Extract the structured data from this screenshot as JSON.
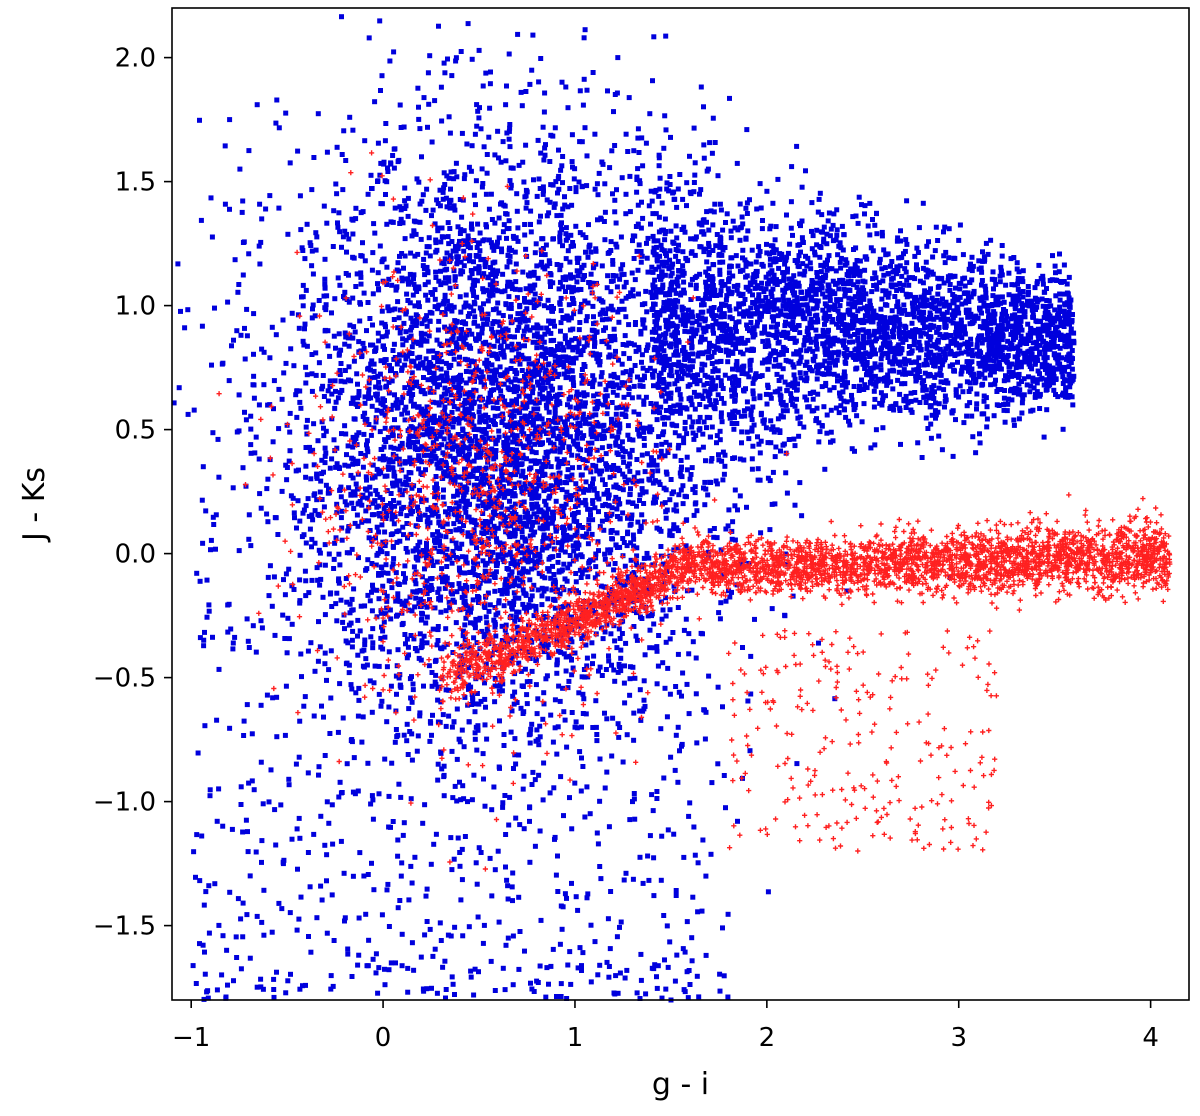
{
  "chart_data": {
    "type": "scatter",
    "title": "",
    "xlabel": "g - i",
    "ylabel": "J - Ks",
    "xlim": [
      -1.1,
      4.2
    ],
    "ylim": [
      -1.8,
      2.2
    ],
    "xticks": [
      -1,
      0,
      1,
      2,
      3,
      4
    ],
    "xtick_labels": [
      "−1",
      "0",
      "1",
      "2",
      "3",
      "4"
    ],
    "yticks": [
      -1.5,
      -1.0,
      -0.5,
      0.0,
      0.5,
      1.0,
      1.5,
      2.0
    ],
    "ytick_labels": [
      "−1.5",
      "−1.0",
      "−0.5",
      "0.0",
      "0.5",
      "1.0",
      "1.5",
      "2.0"
    ],
    "grid": false,
    "legend": "none",
    "series": [
      {
        "color": "#0000dd",
        "marker": "square",
        "description_points": [
          [
            -0.8,
            1.75
          ],
          [
            -0.6,
            0.3
          ],
          [
            -0.5,
            -0.4
          ],
          [
            -0.3,
            0.9
          ],
          [
            -0.2,
            1.3
          ],
          [
            -0.1,
            -1.3
          ],
          [
            0.0,
            0.6
          ],
          [
            0.1,
            1.1
          ],
          [
            0.2,
            1.6
          ],
          [
            0.3,
            -0.8
          ],
          [
            0.4,
            0.4
          ],
          [
            0.5,
            1.2
          ],
          [
            0.6,
            -1.2
          ],
          [
            0.7,
            0.9
          ],
          [
            0.8,
            0.2
          ],
          [
            0.9,
            1.5
          ],
          [
            1.0,
            -0.7
          ],
          [
            1.1,
            0.7
          ],
          [
            1.2,
            1.1
          ],
          [
            1.3,
            -1.0
          ],
          [
            1.4,
            0.5
          ],
          [
            1.5,
            1.3
          ],
          [
            1.6,
            0.3
          ],
          [
            1.8,
            0.8
          ],
          [
            2.0,
            1.0
          ],
          [
            2.2,
            0.7
          ],
          [
            2.4,
            0.95
          ],
          [
            2.6,
            0.8
          ],
          [
            2.8,
            1.0
          ],
          [
            3.0,
            0.9
          ],
          [
            3.2,
            0.85
          ],
          [
            3.4,
            0.9
          ],
          [
            3.6,
            0.85
          ]
        ]
      },
      {
        "color": "#ff2020",
        "marker": "plus",
        "description_points": [
          [
            0.3,
            -0.5
          ],
          [
            0.5,
            -0.42
          ],
          [
            0.7,
            -0.35
          ],
          [
            0.9,
            -0.27
          ],
          [
            1.1,
            -0.2
          ],
          [
            1.3,
            -0.14
          ],
          [
            1.5,
            -0.09
          ],
          [
            1.7,
            -0.06
          ],
          [
            2.0,
            -0.05
          ],
          [
            2.3,
            -0.05
          ],
          [
            2.6,
            -0.04
          ],
          [
            2.9,
            -0.03
          ],
          [
            3.2,
            -0.02
          ],
          [
            3.5,
            -0.01
          ],
          [
            3.8,
            0.0
          ],
          [
            4.0,
            0.02
          ],
          [
            0.4,
            0.6
          ],
          [
            0.6,
            0.3
          ],
          [
            0.8,
            0.8
          ],
          [
            1.0,
            0.1
          ],
          [
            1.2,
            0.5
          ],
          [
            0.7,
            0.0
          ]
        ]
      }
    ]
  }
}
